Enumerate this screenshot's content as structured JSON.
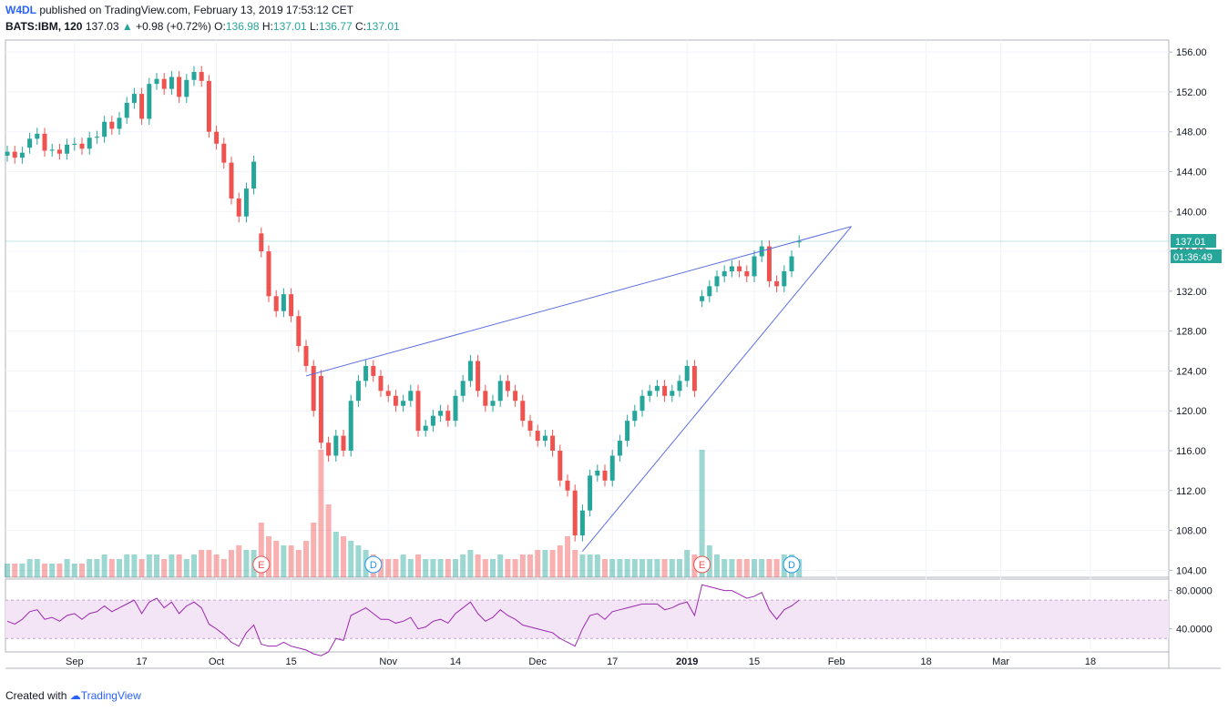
{
  "header": {
    "author": "W4DL",
    "published": " published on TradingView.com, February 13, 2019 17:53:12 CET",
    "symbol": "BATS:IBM, 120",
    "last": "137.03",
    "change": "+0.98 (+0.72%)",
    "o_label": "O:",
    "o": "136.98",
    "h_label": "H:",
    "h": "137.01",
    "l_label": "L:",
    "l": "136.77",
    "c_label": "C:",
    "c": "137.01"
  },
  "footer": {
    "prefix": "Created with",
    "brand": "TradingView"
  },
  "colors": {
    "up": "#26a69a",
    "down": "#ef5350",
    "trendline": "#5b6ee1",
    "rsi": "#9c27b0",
    "rsi_band": "#f3e5f5"
  },
  "chart_data": {
    "type": "candlestick",
    "title": "",
    "price_axis": {
      "ticks": [
        "156.00",
        "152.00",
        "148.00",
        "144.00",
        "140.00",
        "136.00",
        "132.00",
        "128.00",
        "124.00",
        "120.00",
        "116.00",
        "112.00",
        "108.00",
        "104.00"
      ],
      "range": [
        103.3,
        157.2
      ]
    },
    "rsi_axis": {
      "ticks": [
        "80.0000",
        "40.0000"
      ],
      "range": [
        16,
        92
      ],
      "band": [
        30,
        70
      ]
    },
    "last_price_label": "137.01",
    "countdown_label": "01:36:49",
    "date_ticks": [
      {
        "label": "Sep",
        "i": 9,
        "bold": false
      },
      {
        "label": "17",
        "i": 18,
        "bold": false
      },
      {
        "label": "Oct",
        "i": 28,
        "bold": false
      },
      {
        "label": "15",
        "i": 38,
        "bold": false
      },
      {
        "label": "Nov",
        "i": 51,
        "bold": false
      },
      {
        "label": "14",
        "i": 60,
        "bold": false
      },
      {
        "label": "Dec",
        "i": 71,
        "bold": false
      },
      {
        "label": "17",
        "i": 81,
        "bold": false
      },
      {
        "label": "2019",
        "i": 91,
        "bold": true
      },
      {
        "label": "15",
        "i": 100,
        "bold": false
      },
      {
        "label": "Feb",
        "i": 111,
        "bold": false
      },
      {
        "label": "18",
        "i": 123,
        "bold": false
      },
      {
        "label": "Mar",
        "i": 133,
        "bold": false
      },
      {
        "label": "18",
        "i": 145,
        "bold": false
      }
    ],
    "closes": [
      146.0,
      145.4,
      145.9,
      147.3,
      147.8,
      146.1,
      146.2,
      145.8,
      146.7,
      146.8,
      146.3,
      147.4,
      147.5,
      149.0,
      148.3,
      149.4,
      150.9,
      151.8,
      149.3,
      152.8,
      153.3,
      152.3,
      153.5,
      151.5,
      153.2,
      154.0,
      153.1,
      148.0,
      146.8,
      144.9,
      141.3,
      139.5,
      142.3,
      145.0,
      136.0,
      131.5,
      130.0,
      131.7,
      129.5,
      126.5,
      124.5,
      120.0,
      116.8,
      115.5,
      117.5,
      116.0,
      121.0,
      123.0,
      124.5,
      123.5,
      122.0,
      121.5,
      120.5,
      121.0,
      122.0,
      118.0,
      118.5,
      119.5,
      120.0,
      119.0,
      121.5,
      123.0,
      125.0,
      122.0,
      120.5,
      121.0,
      123.0,
      122.0,
      121.0,
      119.0,
      118.0,
      117.0,
      117.5,
      116.0,
      113.0,
      112.0,
      107.5,
      110.0,
      113.5,
      114.0,
      113.0,
      115.5,
      117.0,
      119.0,
      120.0,
      121.5,
      122.0,
      122.5,
      121.5,
      122.0,
      123.0,
      124.5,
      122.0,
      131.5,
      132.5,
      133.5,
      134.0,
      134.5,
      134.0,
      133.5,
      135.5,
      136.5,
      133.0,
      132.5,
      134.0,
      135.5,
      137.0
    ],
    "opens": [
      145.6,
      146.0,
      145.4,
      146.4,
      147.3,
      147.8,
      146.1,
      146.2,
      145.8,
      146.7,
      146.8,
      146.3,
      147.4,
      147.5,
      149.0,
      148.3,
      149.4,
      150.9,
      151.8,
      149.3,
      152.8,
      153.3,
      152.3,
      153.5,
      151.5,
      153.2,
      154.0,
      153.1,
      148.0,
      146.8,
      144.9,
      141.3,
      139.5,
      142.3,
      137.8,
      136.0,
      131.5,
      130.0,
      131.7,
      129.5,
      126.5,
      124.5,
      123.5,
      116.8,
      115.5,
      117.5,
      116.0,
      121.0,
      123.0,
      124.5,
      123.5,
      122.0,
      121.5,
      120.5,
      121.0,
      122.0,
      118.0,
      118.5,
      119.5,
      120.0,
      119.0,
      121.5,
      123.0,
      125.0,
      122.0,
      120.5,
      121.0,
      123.0,
      122.0,
      121.0,
      119.0,
      118.0,
      117.0,
      117.5,
      116.0,
      113.0,
      112.0,
      107.5,
      110.0,
      113.5,
      114.0,
      113.0,
      115.5,
      117.0,
      119.0,
      120.0,
      121.5,
      122.0,
      122.5,
      121.5,
      122.0,
      123.0,
      124.5,
      131.0,
      131.5,
      132.5,
      133.5,
      134.0,
      134.5,
      134.0,
      133.5,
      135.5,
      136.5,
      133.0,
      132.5,
      134.0,
      136.98
    ],
    "volumes": [
      3,
      3,
      3,
      4,
      4,
      3,
      3,
      3,
      4,
      3,
      3,
      4,
      4,
      5,
      4,
      4,
      5,
      5,
      4,
      5,
      5,
      4,
      5,
      5,
      4,
      5,
      6,
      6,
      5,
      4,
      6,
      7,
      6,
      6,
      12,
      9,
      8,
      7,
      7,
      6,
      8,
      12,
      28,
      16,
      10,
      9,
      8,
      7,
      6,
      5,
      4,
      4,
      4,
      5,
      4,
      5,
      4,
      4,
      4,
      4,
      4,
      5,
      6,
      5,
      4,
      4,
      5,
      4,
      4,
      5,
      5,
      6,
      6,
      6,
      7,
      9,
      6,
      5,
      5,
      5,
      4,
      4,
      4,
      4,
      4,
      4,
      4,
      4,
      4,
      4,
      4,
      6,
      5,
      28,
      7,
      5,
      4,
      4,
      4,
      4,
      4,
      4,
      4,
      4,
      5,
      5,
      4
    ],
    "rsi": [
      48,
      45,
      50,
      58,
      60,
      50,
      52,
      48,
      54,
      56,
      50,
      56,
      58,
      64,
      58,
      62,
      66,
      70,
      56,
      68,
      72,
      62,
      68,
      56,
      64,
      68,
      62,
      45,
      40,
      34,
      26,
      22,
      36,
      44,
      24,
      22,
      22,
      26,
      22,
      20,
      18,
      14,
      12,
      16,
      30,
      28,
      54,
      58,
      62,
      56,
      50,
      50,
      46,
      48,
      52,
      40,
      42,
      48,
      50,
      46,
      56,
      62,
      68,
      56,
      48,
      52,
      60,
      54,
      50,
      44,
      42,
      40,
      38,
      36,
      30,
      26,
      22,
      40,
      54,
      56,
      50,
      58,
      60,
      62,
      64,
      66,
      66,
      66,
      60,
      62,
      66,
      68,
      54,
      86,
      84,
      82,
      80,
      80,
      76,
      72,
      74,
      78,
      60,
      50,
      60,
      64,
      70
    ],
    "trendlines": [
      {
        "from": [
          40,
          123.5
        ],
        "to": [
          113,
          138.5
        ]
      },
      {
        "from": [
          77,
          105.9
        ],
        "to": [
          113,
          138.5
        ]
      }
    ],
    "events": [
      {
        "type": "E",
        "i": 34
      },
      {
        "type": "D",
        "i": 49
      },
      {
        "type": "E",
        "i": 93
      },
      {
        "type": "D",
        "i": 105
      }
    ],
    "grid": true
  }
}
